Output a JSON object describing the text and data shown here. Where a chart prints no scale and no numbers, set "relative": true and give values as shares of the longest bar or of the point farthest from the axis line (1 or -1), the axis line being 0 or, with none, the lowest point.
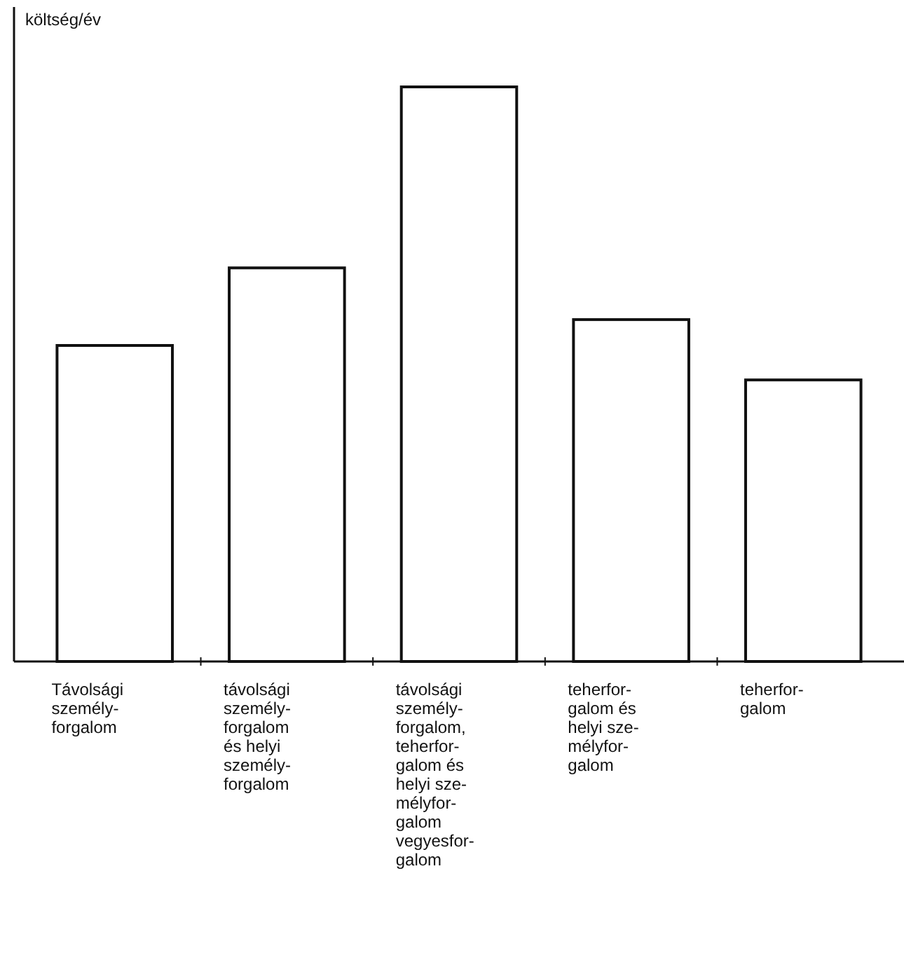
{
  "chart_data": {
    "type": "bar",
    "ylabel": "költség/év",
    "relative": true,
    "categories": [
      "Távolsági\nszemély-\nforgalom",
      "távolsági\nszemély-\nforgalom\nés helyi\nszemély-\nforgalom",
      "távolsági\nszemély-\nforgalom,\nteherfor-\ngalom és\nhelyi sze-\nmélyfor-\ngalom\nvegyesfor-\ngalom",
      "teherfor-\ngalom és\nhelyi sze-\nmélyfor-\ngalom",
      "teherfor-\ngalom"
    ],
    "values": [
      0.55,
      0.685,
      1,
      0.595,
      0.49
    ],
    "color": "#ffffff"
  }
}
